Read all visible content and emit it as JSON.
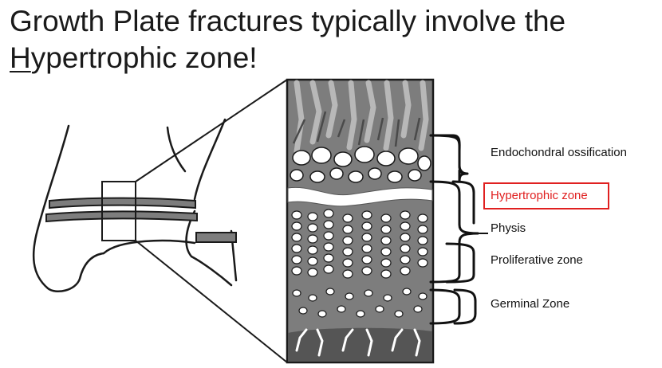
{
  "slide": {
    "title_line1": "Growth Plate fractures typically involve the",
    "title_first_letter": "H",
    "title_rest": "ypertrophic zone!"
  },
  "zones": [
    {
      "label": "Endochondral ossification",
      "highlighted": false
    },
    {
      "label": "Hypertrophic zone",
      "highlighted": true
    },
    {
      "label": "Physis",
      "highlighted": false
    },
    {
      "label": "Proliferative zone",
      "highlighted": false
    },
    {
      "label": "Germinal Zone",
      "highlighted": false
    }
  ],
  "colors": {
    "highlight": "#e02020",
    "highlight_text": "#e02020",
    "text": "#111111",
    "panel_bg": "#7d7d7d",
    "cell_fill": "#ffffff"
  }
}
